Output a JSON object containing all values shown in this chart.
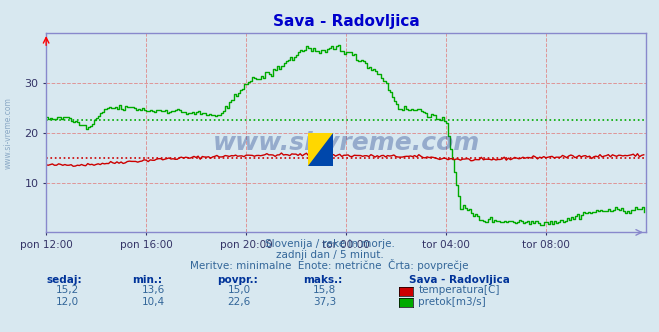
{
  "title": "Sava - Radovljica",
  "title_color": "#0000cc",
  "bg_color": "#d8e8f0",
  "plot_bg_color": "#d8e8f0",
  "grid_color": "#e08080",
  "axis_color": "#8888cc",
  "xlim": [
    0,
    288
  ],
  "ylim": [
    0,
    40
  ],
  "yticks": [
    10,
    20,
    30
  ],
  "xtick_labels": [
    "pon 12:00",
    "pon 16:00",
    "pon 20:00",
    "tor 00:00",
    "tor 04:00",
    "tor 08:00"
  ],
  "xtick_positions": [
    0,
    48,
    96,
    144,
    192,
    240
  ],
  "temp_avg": 15.0,
  "flow_avg": 22.6,
  "temp_color": "#cc0000",
  "flow_color": "#00aa00",
  "footer_lines": [
    "Slovenija / reke in morje.",
    "zadnji dan / 5 minut.",
    "Meritve: minimalne  Enote: metrične  Črta: povprečje"
  ],
  "table_headers": [
    "sedaj:",
    "min.:",
    "povpr.:",
    "maks.:"
  ],
  "table_row1": [
    "15,2",
    "13,6",
    "15,0",
    "15,8"
  ],
  "table_row2": [
    "12,0",
    "10,4",
    "22,6",
    "37,3"
  ],
  "legend_title": "Sava - Radovljica",
  "legend_items": [
    "temperatura[C]",
    "pretok[m3/s]"
  ],
  "legend_colors": [
    "#cc0000",
    "#00aa00"
  ],
  "watermark": "www.si-vreme.com",
  "watermark_color": "#1a3a8a",
  "watermark_alpha": 0.35,
  "side_text": "www.si-vreme.com",
  "side_text_color": "#7799bb"
}
